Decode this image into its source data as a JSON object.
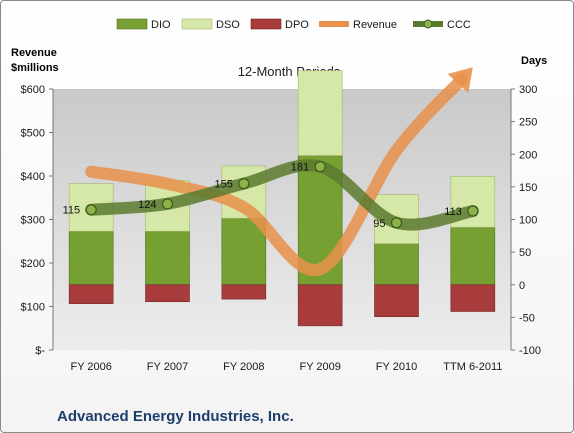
{
  "chart_data": {
    "type": "bar",
    "subtitle": "12-Month Periods",
    "company": "Advanced Energy Industries, Inc.",
    "left_axis_title": [
      "Revenue",
      "$millions"
    ],
    "right_axis_title": "Days",
    "categories": [
      "FY 2006",
      "FY 2007",
      "FY 2008",
      "FY 2009",
      "FY 2010",
      "TTM 6-2011"
    ],
    "left_axis": {
      "min": 0,
      "max": 600,
      "step": 100,
      "tick_labels": [
        "$-",
        "$100",
        "$200",
        "$300",
        "$400",
        "$500",
        "$600"
      ]
    },
    "right_axis": {
      "min": -100,
      "max": 300,
      "step": 50,
      "tick_labels": [
        "-100",
        "-50",
        "0",
        "50",
        "100",
        "150",
        "200",
        "250",
        "300"
      ]
    },
    "series": [
      {
        "name": "DIO",
        "kind": "bar",
        "axis": "days",
        "color": "#77a033",
        "values": [
          82,
          82,
          102,
          198,
          63,
          88
        ]
      },
      {
        "name": "DSO",
        "kind": "bar",
        "axis": "days",
        "color": "#d6e8a8",
        "values": [
          73,
          78,
          80,
          130,
          75,
          78
        ]
      },
      {
        "name": "DPO",
        "kind": "bar",
        "axis": "days",
        "color": "#a83c3c",
        "values": [
          -29,
          -26,
          -22,
          -63,
          -49,
          -41
        ]
      },
      {
        "name": "Revenue",
        "kind": "line",
        "axis": "revenue",
        "color": "#e8914a",
        "values": [
          410,
          382,
          328,
          186,
          459,
          650
        ]
      },
      {
        "name": "CCC",
        "kind": "line",
        "axis": "days",
        "color": "#5a7a2e",
        "values": [
          115,
          124,
          155,
          181,
          95,
          113
        ],
        "labels": [
          "115",
          "124",
          "155",
          "181",
          "95",
          "113"
        ]
      }
    ],
    "legend_position": "top",
    "grid": false
  }
}
